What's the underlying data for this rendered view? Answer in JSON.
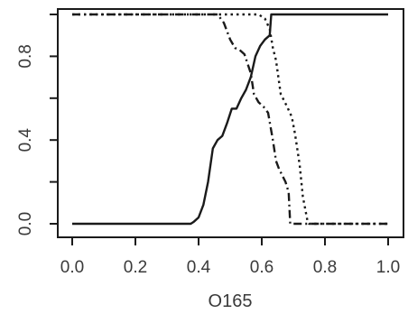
{
  "chart_data": {
    "type": "line",
    "title": "",
    "xlabel": "O165",
    "ylabel": "",
    "xlim": [
      0.0,
      1.0
    ],
    "ylim": [
      0.0,
      1.0
    ],
    "grid": false,
    "legend": "none",
    "x_ticks": [
      "0.0",
      "0.2",
      "0.4",
      "0.6",
      "0.8",
      "1.0"
    ],
    "y_ticks": [
      "0.0",
      "0.4",
      "0.8"
    ],
    "series": [
      {
        "line_style": "solid",
        "color": "#1a1a1a",
        "points": [
          [
            0.0,
            0.0
          ],
          [
            0.375,
            0.0
          ],
          [
            0.385,
            0.01
          ],
          [
            0.4,
            0.03
          ],
          [
            0.415,
            0.09
          ],
          [
            0.43,
            0.2
          ],
          [
            0.445,
            0.36
          ],
          [
            0.46,
            0.4
          ],
          [
            0.475,
            0.42
          ],
          [
            0.49,
            0.48
          ],
          [
            0.505,
            0.55
          ],
          [
            0.52,
            0.55
          ],
          [
            0.535,
            0.6
          ],
          [
            0.55,
            0.64
          ],
          [
            0.565,
            0.7
          ],
          [
            0.58,
            0.8
          ],
          [
            0.595,
            0.85
          ],
          [
            0.61,
            0.88
          ],
          [
            0.625,
            0.9
          ],
          [
            0.63,
            1.0
          ],
          [
            1.0,
            1.0
          ]
        ]
      },
      {
        "line_style": "dashdot",
        "color": "#1a1a1a",
        "points": [
          [
            0.0,
            1.0
          ],
          [
            0.46,
            1.0
          ],
          [
            0.48,
            0.96
          ],
          [
            0.49,
            0.92
          ],
          [
            0.5,
            0.88
          ],
          [
            0.515,
            0.84
          ],
          [
            0.53,
            0.83
          ],
          [
            0.545,
            0.81
          ],
          [
            0.565,
            0.72
          ],
          [
            0.575,
            0.62
          ],
          [
            0.59,
            0.58
          ],
          [
            0.605,
            0.56
          ],
          [
            0.62,
            0.53
          ],
          [
            0.635,
            0.4
          ],
          [
            0.645,
            0.3
          ],
          [
            0.655,
            0.26
          ],
          [
            0.665,
            0.23
          ],
          [
            0.675,
            0.2
          ],
          [
            0.685,
            0.15
          ],
          [
            0.69,
            0.0
          ],
          [
            1.0,
            0.0
          ]
        ]
      },
      {
        "line_style": "dotted",
        "color": "#1a1a1a",
        "points": [
          [
            0.0,
            1.0
          ],
          [
            0.59,
            1.0
          ],
          [
            0.61,
            0.98
          ],
          [
            0.625,
            0.93
          ],
          [
            0.635,
            0.84
          ],
          [
            0.645,
            0.78
          ],
          [
            0.66,
            0.62
          ],
          [
            0.68,
            0.56
          ],
          [
            0.695,
            0.51
          ],
          [
            0.705,
            0.43
          ],
          [
            0.715,
            0.33
          ],
          [
            0.72,
            0.28
          ],
          [
            0.73,
            0.13
          ],
          [
            0.745,
            0.01
          ],
          [
            0.75,
            0.0
          ],
          [
            1.0,
            0.0
          ]
        ]
      }
    ]
  }
}
